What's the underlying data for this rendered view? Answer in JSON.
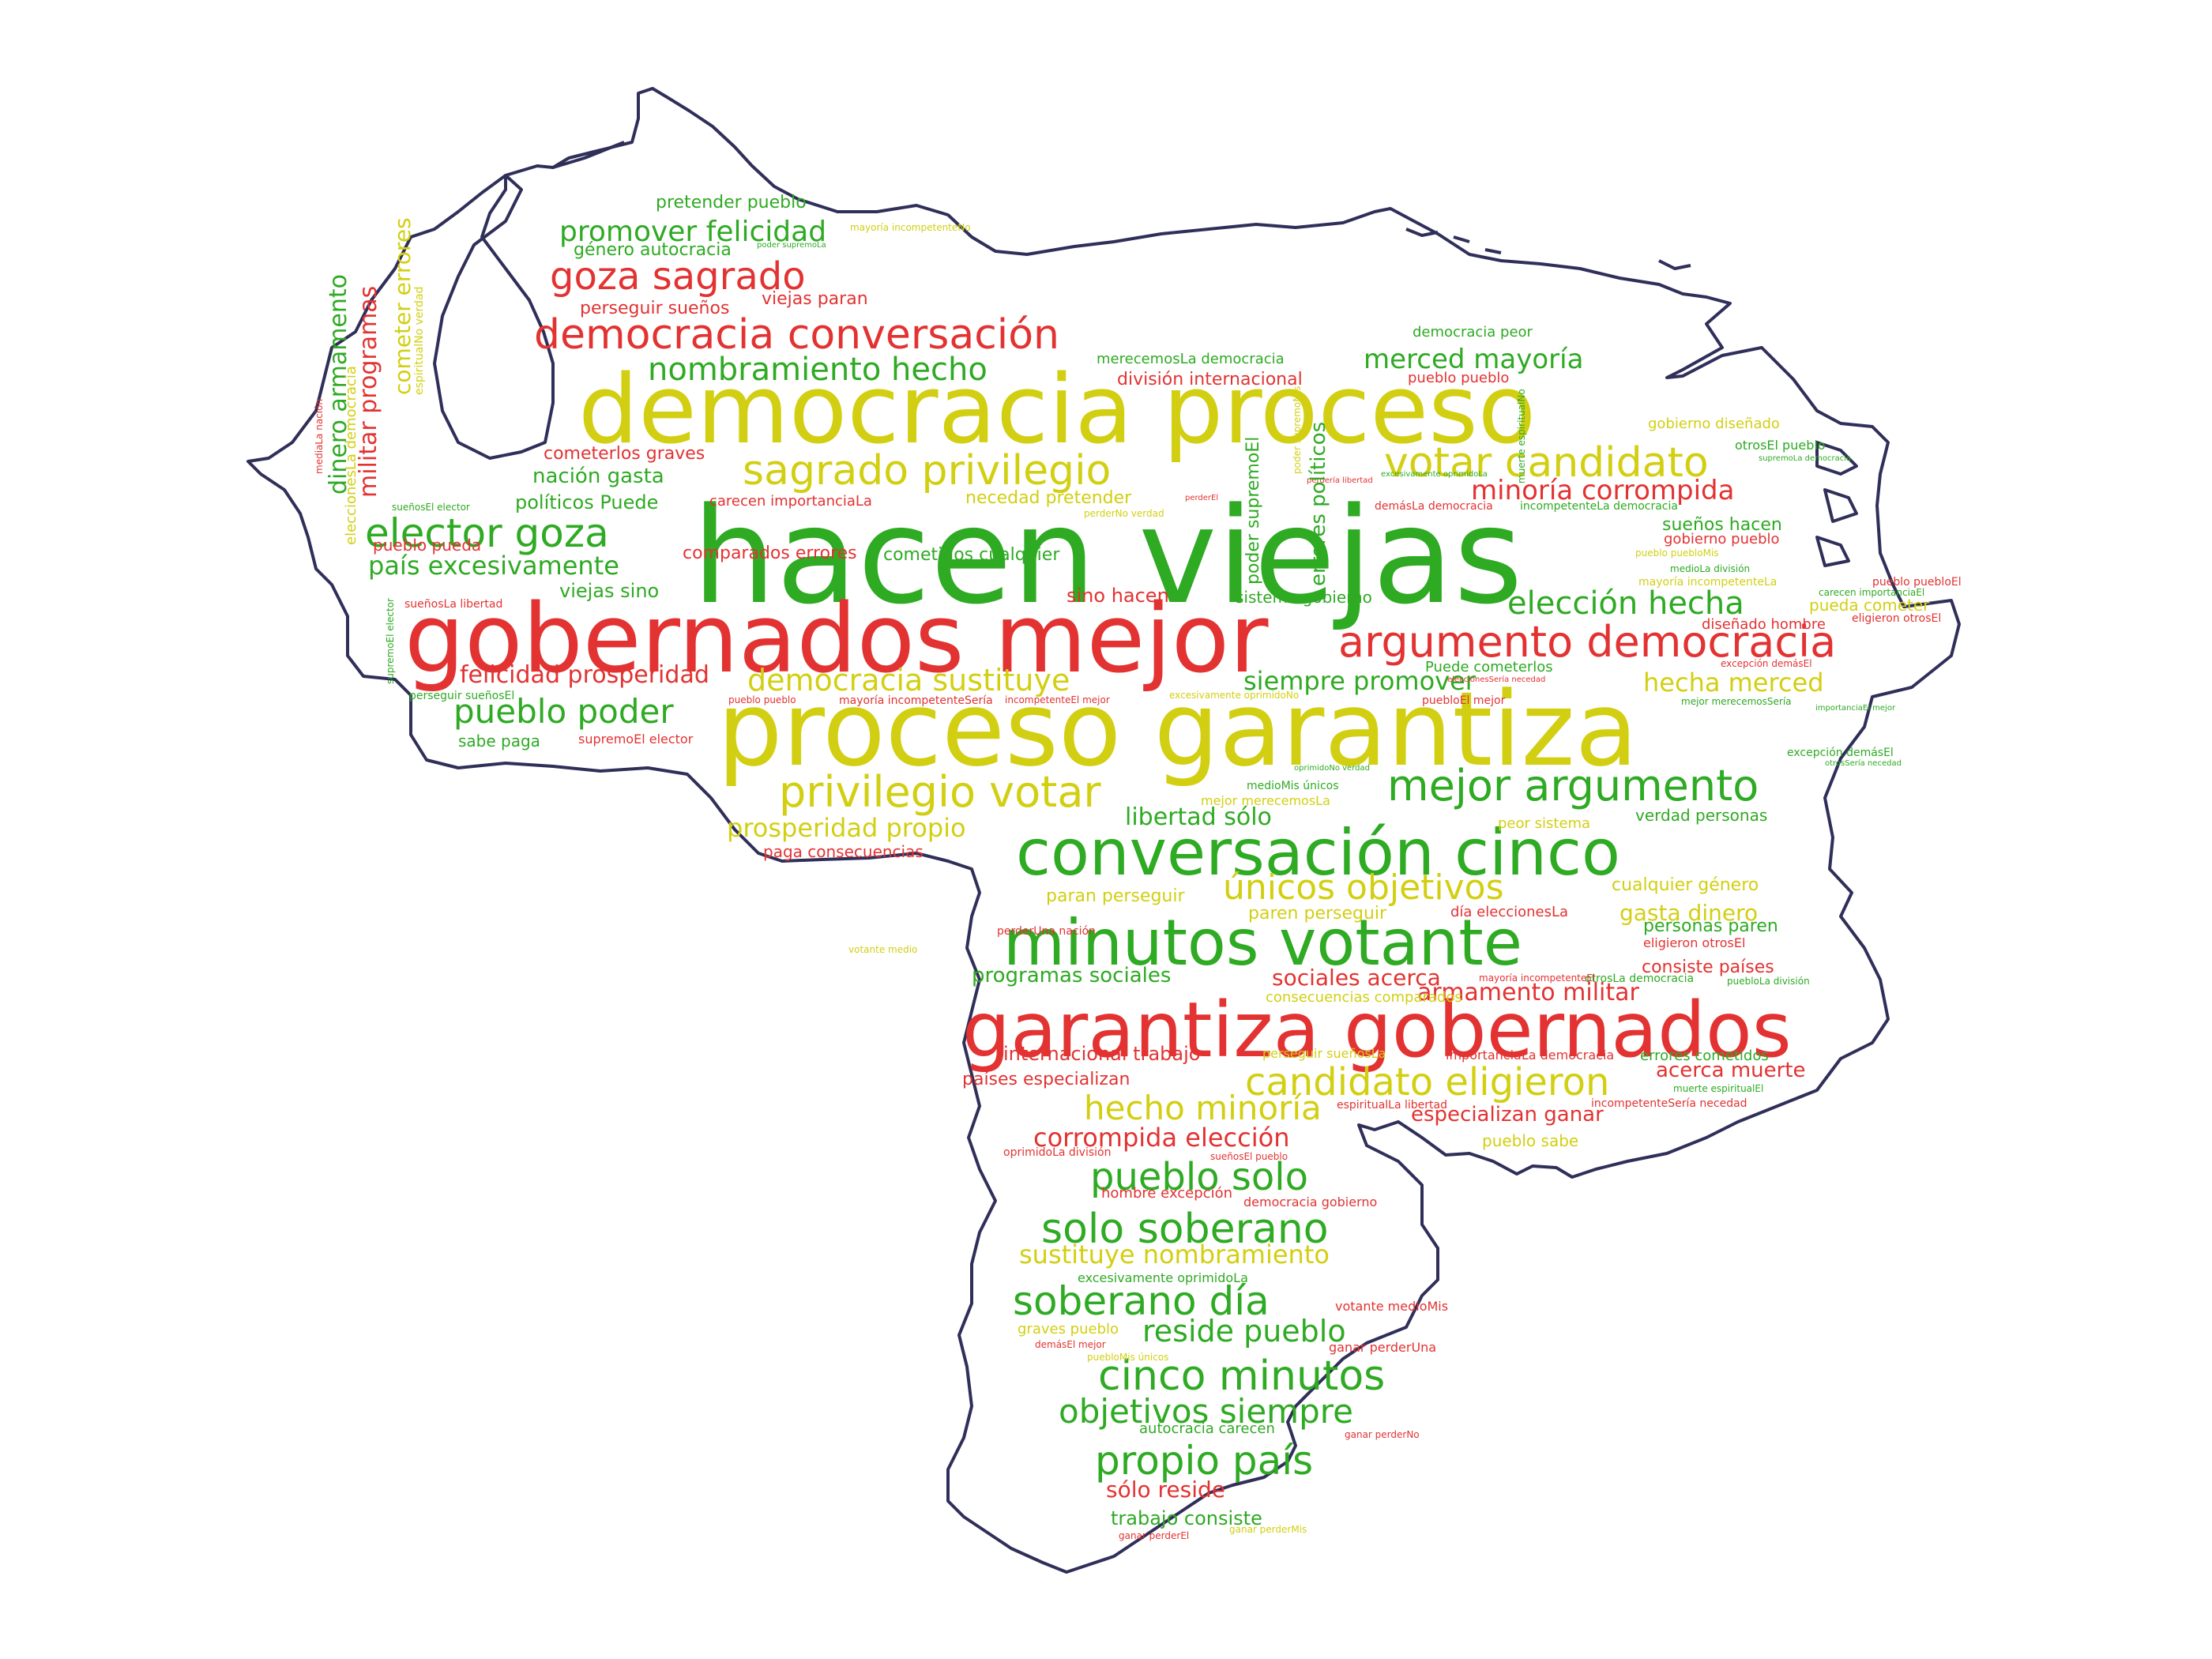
{
  "colors": {
    "green": "#2eaa23",
    "red": "#e33232",
    "yellow": "#d2cf12",
    "outline": "#2f2f5a"
  },
  "words": {
    "w1": "hacen viejas",
    "w2": "gobernados mejor",
    "w3": "proceso garantiza",
    "w4": "democracia proceso",
    "w5": "garantiza gobernados",
    "w6": "minutos votante",
    "w7": "conversación cinco",
    "w8": "democracia conversación",
    "w9": "argumento democracia",
    "w10": "sagrado privilegio",
    "w11": "votar candidato",
    "w12": "elector goza",
    "w13": "goza sagrado",
    "w14": "nombramiento hecho",
    "w15": "privilegio votar",
    "w16": "mejor argumento",
    "w17": "candidato eligieron",
    "w18": "solo soberano",
    "w19": "soberano día",
    "w20": "pueblo solo",
    "w21": "cinco minutos",
    "w22": "propio país",
    "w23": "objetivos siempre",
    "w24": "únicos objetivos",
    "w25": "elección hecha",
    "w26": "democracia sustituye",
    "w27": "pueblo poder",
    "w28": "felicidad prosperidad",
    "w29": "promover felicidad",
    "w30": "merced mayoría",
    "w31": "minoría corrompida",
    "w32": "hecho minoría",
    "w33": "reside pueblo",
    "w34": "sustituye nombramiento",
    "w35": "corrompida elección",
    "w36": "prosperidad propio",
    "w37": "siempre promover",
    "w38": "hecha merced",
    "w39": "país excesivamente",
    "w40": "libertad sólo",
    "w41": "armamento militar",
    "w42": "sociales acerca",
    "w43": "programas sociales",
    "w44": "internacional trabajo",
    "w45": "sólo reside",
    "w46": "trabajo consiste",
    "w47": "especializan ganar",
    "w48": "nación gasta",
    "w49": "políticos Puede",
    "w50": "viejas sino",
    "w51": "comparados errores",
    "w52": "cometidos cualquier",
    "w53": "sino hacen",
    "w54": "sistema gobierno",
    "w55": "necedad pretender",
    "w56": "carecen importanciaLa",
    "w57": "pretender pueblo",
    "w58": "género autocracia",
    "w59": "perseguir sueños",
    "w60": "viejas paran",
    "w61": "división internacional",
    "w62": "merecemosLa democracia",
    "w63": "democracia peor",
    "w64": "pueblo pueblo",
    "w65": "cometerlos graves",
    "w66": "pueblo pueda",
    "w67": "sabe paga",
    "w68": "supremoEl elector",
    "w69": "paga consecuencias",
    "w70": "paran perseguir",
    "w71": "paren perseguir",
    "w72": "cualquier género",
    "w73": "gasta dinero",
    "w74": "personas paren",
    "w75": "consiste países",
    "w76": "errores cometidos",
    "w77": "acerca muerte",
    "w78": "países especializan",
    "w79": "verdad personas",
    "w80": "peor sistema",
    "w81": "pueda cometer",
    "w82": "sueños hacen",
    "w83": "gobierno pueblo",
    "w84": "diseñado hombre",
    "w85": "gobierno diseñado",
    "w86": "Puede cometerlos",
    "w87": "demásLa democracia",
    "w88": "incompetenteLa democracia",
    "w89": "eligieron otrosEl",
    "w90": "pueblo sabe",
    "w91": "hombre excepción",
    "w92": "democracia gobierno",
    "w93": "excesivamente oprimidoLa",
    "w94": "graves pueblo",
    "w95": "autocracia carecen",
    "w96": "ganar perderUna",
    "w97": "votante medioMis",
    "w98": "importanciaLa democracia",
    "w99": "perseguir sueñosLa",
    "w100": "consecuencias comparados",
    "w101": "espiritualLa libertad",
    "w102": "incompetenteSería necedad",
    "w103": "muerte espiritualEl",
    "w104": "otrosLa democracia",
    "w105": "excepción demásEl",
    "w106": "otrosSería necedad",
    "w107": "mayoría incompetenteEl",
    "w108": "dinero armamento",
    "w109": "militar programas",
    "w110": "cometer errores",
    "w111": "eleccionesLa democracia",
    "w112": "perseguir sueñosEl",
    "w113": "pueblo pueblo",
    "w114": "día eleccionesLa",
    "w115": "sueñosLa libertad",
    "w116": "pueblo pueblo",
    "w117": "oprimidoLa división",
    "w118": "perderUna nación",
    "w119": "mejor merecemosLa",
    "w120": "mayoría incompetenteSería",
    "w121": "pueblo pueblo",
    "w122": "demásEl mejor",
    "w123": "ganar perderNo",
    "w124": "sueñosEl pueblo",
    "w125": "supremoEl elector",
    "w126": "pueblo pueblo",
    "w127": "errores políticos",
    "w128": "poder supremoEl",
    "w129": "pueblo pueblo",
    "w130": "pueblo pueblo",
    "w131": "oprimidoNo verdad",
    "w132": "medioMis únicos",
    "w133": "sueñosEl elector",
    "w134": "perderNo verdad",
    "w135": "gobierno pueblo",
    "w136": "pueblo pueblo",
    "w137": "incompetenteEl mejor",
    "w138": "mejor merecemosSería",
    "w139": "espiritualNo verdad",
    "w140": "carecen importanciaEl",
    "w141": "pueblo puebloEl",
    "w142": "importanciaEl mejor",
    "w143": "muerte espiritualLa",
    "w144": "poder supremoLa",
    "w145": "votante medio",
    "w146": "pueblo pueblo",
    "w147": "pueblo puebloMis",
    "w148": "mayoría incompetenteLa",
    "w149": "medioLa división",
    "w150": "otrosEl pueblo",
    "w151": "supremoLa democracia",
    "w152": "perdería libertad",
    "w153": "puebloEl mejor",
    "w154": "muerte espiritualNo",
    "w155": "perderEl",
    "w156": "ganar perderEl",
    "w157": "ganar perderMis",
    "w158": "puebloMis únicos",
    "w159": "excesivamente oprimidoNo",
    "w160": "eleccionesSería necedad",
    "w161": "mayoría incompetenteNo",
    "w162": "puebloLa división",
    "w163": "mediaLa nación",
    "w164": "poder supremoMis"
  }
}
